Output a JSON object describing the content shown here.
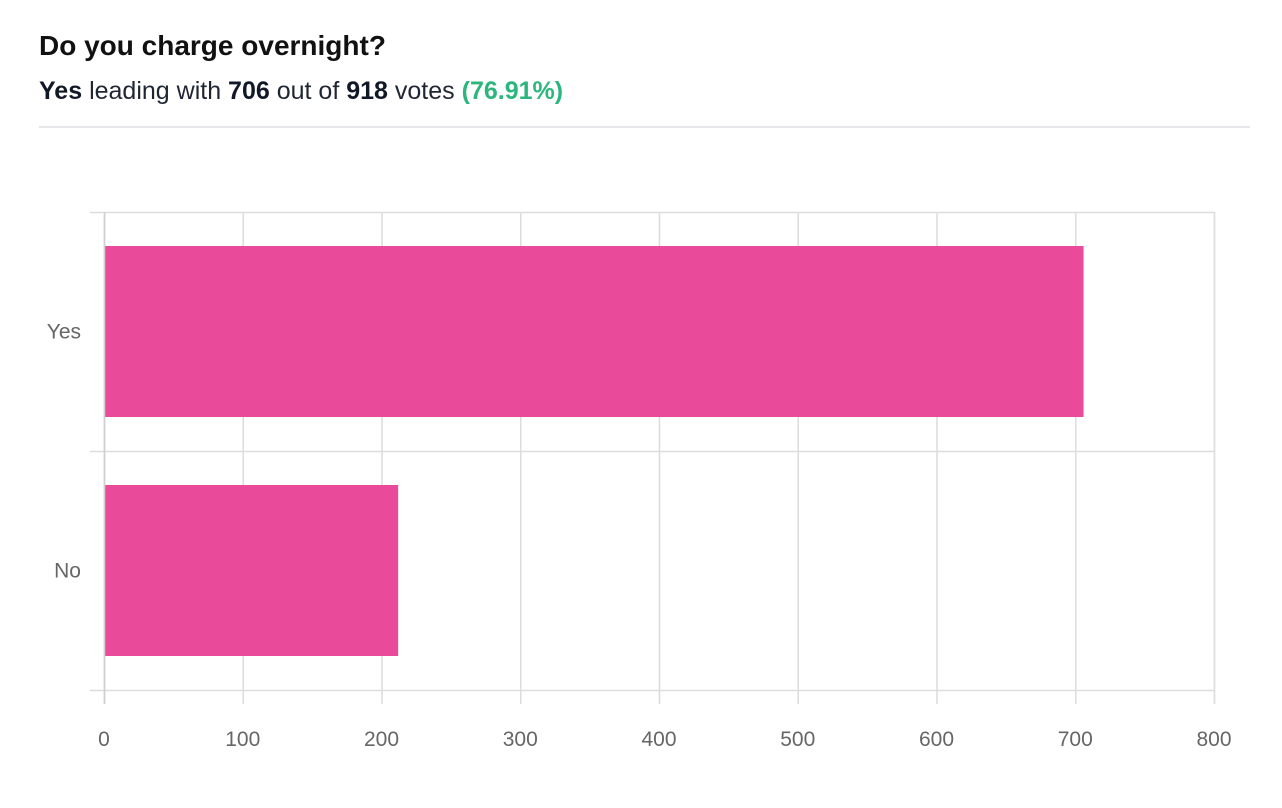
{
  "poll": {
    "title": "Do you charge overnight?",
    "leader": "Yes",
    "text_leading_with": "leading with",
    "leader_votes": "706",
    "text_out_of": "out of",
    "total_votes": "918",
    "text_votes": "votes",
    "leader_percent": "(76.91%)"
  },
  "colors": {
    "bar": "#ea4a9a",
    "grid": "#dddddd",
    "percent": "#2cb67d"
  },
  "chart_data": {
    "type": "bar",
    "orientation": "horizontal",
    "categories": [
      "Yes",
      "No"
    ],
    "values": [
      706,
      212
    ],
    "xlim": [
      0,
      800
    ],
    "xticks": [
      0,
      100,
      200,
      300,
      400,
      500,
      600,
      700,
      800
    ],
    "grid": true
  }
}
